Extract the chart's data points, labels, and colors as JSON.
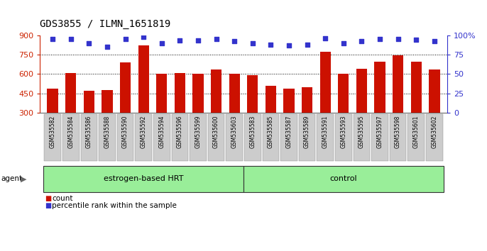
{
  "title": "GDS3855 / ILMN_1651819",
  "samples": [
    "GSM535582",
    "GSM535584",
    "GSM535586",
    "GSM535588",
    "GSM535590",
    "GSM535592",
    "GSM535594",
    "GSM535596",
    "GSM535599",
    "GSM535600",
    "GSM535603",
    "GSM535583",
    "GSM535585",
    "GSM535587",
    "GSM535589",
    "GSM535591",
    "GSM535593",
    "GSM535595",
    "GSM535597",
    "GSM535598",
    "GSM535601",
    "GSM535602"
  ],
  "counts": [
    490,
    610,
    470,
    475,
    690,
    820,
    600,
    610,
    605,
    635,
    600,
    590,
    510,
    490,
    500,
    770,
    600,
    640,
    695,
    745,
    695,
    635
  ],
  "percentile_ranks": [
    95,
    95,
    90,
    85,
    95,
    98,
    90,
    93,
    93,
    95,
    92,
    90,
    88,
    87,
    88,
    96,
    90,
    92,
    95,
    95,
    94,
    92
  ],
  "groups": [
    "estrogen-based HRT",
    "estrogen-based HRT",
    "estrogen-based HRT",
    "estrogen-based HRT",
    "estrogen-based HRT",
    "estrogen-based HRT",
    "estrogen-based HRT",
    "estrogen-based HRT",
    "estrogen-based HRT",
    "estrogen-based HRT",
    "estrogen-based HRT",
    "control",
    "control",
    "control",
    "control",
    "control",
    "control",
    "control",
    "control",
    "control",
    "control",
    "control"
  ],
  "bar_color": "#CC1100",
  "dot_color": "#3333CC",
  "ylim_left": [
    300,
    900
  ],
  "ylim_right": [
    0,
    100
  ],
  "yticks_left": [
    300,
    450,
    600,
    750,
    900
  ],
  "yticks_right": [
    0,
    25,
    50,
    75,
    100
  ],
  "left_tick_color": "#CC2200",
  "right_tick_color": "#3333CC",
  "background_color": "#ffffff",
  "grid_color": "#000000",
  "title_fontsize": 10,
  "axis_fontsize": 8,
  "tick_label_fontsize": 6,
  "group_box_color": "#99EE99",
  "group_box_edge": "#333333",
  "xtick_box_color": "#CCCCCC",
  "xtick_box_edge": "#888888",
  "agent_label": "agent",
  "legend_count_color": "#CC1100",
  "legend_dot_color": "#3333CC",
  "right_axis_top_label": "100%"
}
